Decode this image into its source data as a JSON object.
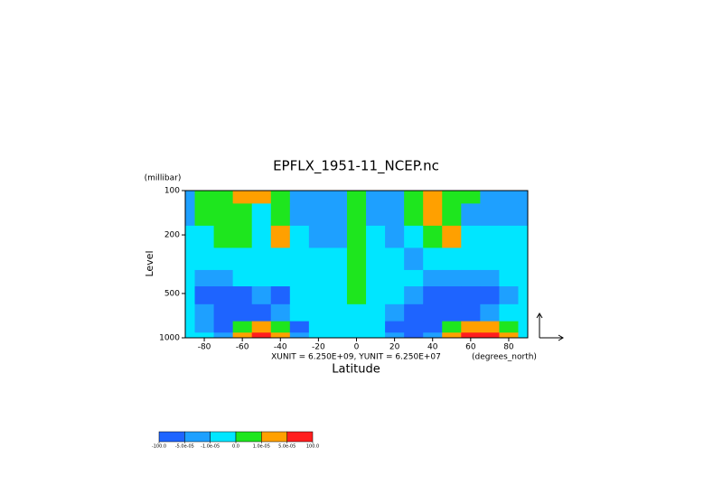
{
  "chart_data": {
    "type": "contour",
    "title": "EPFLX_1951-11_NCEP.nc",
    "xlabel": "Latitude",
    "xunit": "(degrees_north)",
    "ylabel": "Level",
    "yunit": "(millibar)",
    "note": "XUNIT = 6.250E+09, YUNIT = 6.250E+07",
    "xlim": [
      -90,
      90
    ],
    "xticks": [
      -80,
      -60,
      -40,
      -20,
      0,
      20,
      40,
      60,
      80
    ],
    "ylim": [
      1000,
      100
    ],
    "yticks": [
      100,
      200,
      500,
      1000
    ],
    "ylog": true,
    "x": [
      -90,
      -80,
      -70,
      -60,
      -50,
      -40,
      -30,
      -20,
      -10,
      0,
      10,
      20,
      30,
      40,
      50,
      60,
      70,
      80,
      90
    ],
    "levels": [
      100,
      150,
      200,
      300,
      400,
      500,
      700,
      850,
      1000
    ],
    "values": [
      [
        -3e-05,
        5e-06,
        5e-06,
        3e-05,
        3e-05,
        5e-06,
        -3e-05,
        -3e-05,
        -3e-05,
        5e-06,
        -3e-05,
        -3e-05,
        5e-06,
        3e-05,
        5e-06,
        5e-06,
        -3e-05,
        -3e-05,
        -3e-05
      ],
      [
        -3e-05,
        5e-06,
        5e-06,
        5e-06,
        -5e-06,
        5e-06,
        -3e-05,
        -3e-05,
        -3e-05,
        5e-06,
        -3e-05,
        -3e-05,
        5e-06,
        3e-05,
        5e-06,
        -3e-05,
        -3e-05,
        -3e-05,
        -3e-05
      ],
      [
        -5e-06,
        -5e-06,
        5e-06,
        5e-06,
        -5e-06,
        3e-05,
        -5e-06,
        -3e-05,
        -3e-05,
        5e-06,
        -5e-06,
        -3e-05,
        -5e-06,
        5e-06,
        3e-05,
        -5e-06,
        -5e-06,
        -5e-06,
        -5e-06
      ],
      [
        -5e-06,
        -5e-06,
        -5e-06,
        -5e-06,
        -5e-06,
        -5e-06,
        -5e-06,
        -5e-06,
        -5e-06,
        5e-06,
        -5e-06,
        -5e-06,
        -3e-05,
        -5e-06,
        -5e-06,
        -5e-06,
        -5e-06,
        -5e-06,
        -5e-06
      ],
      [
        -5e-06,
        -3e-05,
        -3e-05,
        -5e-06,
        -5e-06,
        -5e-06,
        -5e-06,
        -5e-06,
        -5e-06,
        5e-06,
        -5e-06,
        -5e-06,
        -5e-06,
        -3e-05,
        -3e-05,
        -3e-05,
        -3e-05,
        -5e-06,
        -5e-06
      ],
      [
        -5e-06,
        -7e-05,
        -7e-05,
        -7e-05,
        -3e-05,
        -7e-05,
        -5e-06,
        -5e-06,
        -5e-06,
        5e-06,
        -5e-06,
        -5e-06,
        -3e-05,
        -7e-05,
        -7e-05,
        -7e-05,
        -7e-05,
        -3e-05,
        -5e-06
      ],
      [
        -5e-06,
        -3e-05,
        -7e-05,
        -7e-05,
        -7e-05,
        -3e-05,
        -5e-06,
        -5e-06,
        -5e-06,
        -5e-06,
        -5e-06,
        -3e-05,
        -7e-05,
        -7e-05,
        -7e-05,
        -7e-05,
        -3e-05,
        -5e-06,
        -5e-06
      ],
      [
        -5e-06,
        -3e-05,
        -7e-05,
        5e-06,
        3e-05,
        5e-06,
        -7e-05,
        -5e-06,
        -5e-06,
        -5e-06,
        -5e-06,
        -7e-05,
        -7e-05,
        -7e-05,
        5e-06,
        3e-05,
        3e-05,
        5e-06,
        -5e-06
      ],
      [
        -5e-06,
        -5e-06,
        -3e-05,
        3e-05,
        7e-05,
        3e-05,
        -3e-05,
        -5e-06,
        -5e-06,
        -5e-06,
        -5e-06,
        -3e-05,
        -7e-05,
        -3e-05,
        3e-05,
        7e-05,
        7e-05,
        3e-05,
        -5e-06
      ]
    ],
    "colorbar": {
      "ticks": [
        {
          "value": -100,
          "label": "-100.0"
        },
        {
          "value": -5e-05,
          "label": "-5.0e-05"
        },
        {
          "value": -1e-05,
          "label": "-1.0e-05"
        },
        {
          "value": 0,
          "label": "0.0"
        },
        {
          "value": 1e-05,
          "label": "1.0e-05"
        },
        {
          "value": 5e-05,
          "label": "5.0e-05"
        },
        {
          "value": 100,
          "label": "100.0"
        }
      ],
      "colors": [
        "#1e64ff",
        "#1ea0ff",
        "#00e6ff",
        "#1ee61e",
        "#ffa000",
        "#ff1e1e"
      ]
    }
  }
}
